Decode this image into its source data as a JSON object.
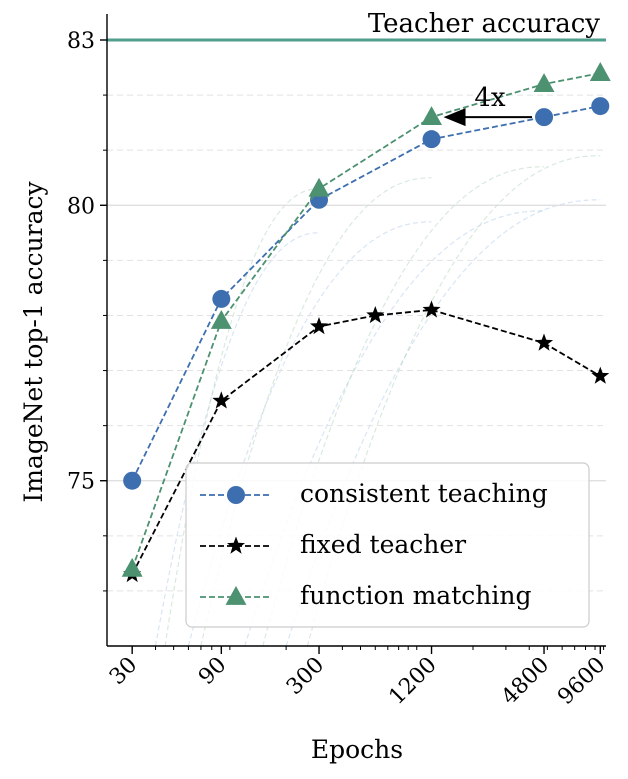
{
  "chart_data": {
    "type": "line",
    "xlabel": "Epochs",
    "ylabel": "ImageNet top-1 accuracy",
    "xscale": "log",
    "x_ticks": [
      30,
      90,
      300,
      1200,
      4800,
      9600
    ],
    "x_tick_labels": [
      "30",
      "90",
      "300",
      "1200",
      "4800",
      "9600"
    ],
    "xlim": [
      22,
      10300
    ],
    "y_ticks": [
      75,
      80,
      83
    ],
    "y_tick_labels": [
      "75",
      "80",
      "83"
    ],
    "ylim": [
      72,
      83
    ],
    "grid": true,
    "legend_position": "lower-right",
    "teacher_line": {
      "value": 83,
      "label": "Teacher accuracy",
      "color": "#4f9e8e"
    },
    "annotations": [
      {
        "text": "4x",
        "type": "arrow",
        "from_x": 4800,
        "to_x": 1200,
        "y": 81.6
      }
    ],
    "series": [
      {
        "name": "consistent teaching",
        "marker": "circle",
        "color": "#3d6fb0",
        "x": [
          30,
          90,
          300,
          1200,
          4800,
          9600
        ],
        "y": [
          75.0,
          78.3,
          80.1,
          81.2,
          81.6,
          81.8
        ]
      },
      {
        "name": "fixed teacher",
        "marker": "star",
        "color": "#000000",
        "x": [
          30,
          90,
          300,
          600,
          1200,
          4800,
          9600
        ],
        "y": [
          73.3,
          76.45,
          77.8,
          78.0,
          78.1,
          77.5,
          76.9
        ]
      },
      {
        "name": "function matching",
        "marker": "triangle",
        "color": "#4c9170",
        "x": [
          30,
          90,
          300,
          1200,
          4800,
          9600
        ],
        "y": [
          73.4,
          77.9,
          80.3,
          81.6,
          82.2,
          82.4
        ]
      }
    ]
  }
}
